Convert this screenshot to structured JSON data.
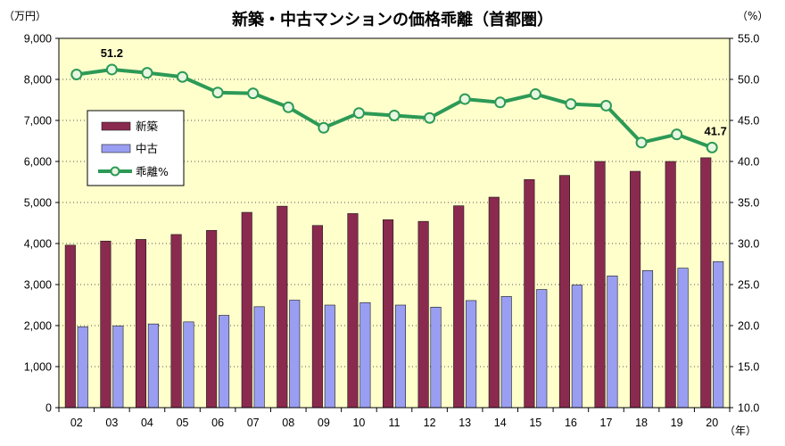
{
  "chart_data": {
    "type": "bar",
    "title": "新築・中古マンションの価格乖離（首都圏）",
    "ylabel_left": "（万円）",
    "ylabel_right": "（%）",
    "xlabel": "（年）",
    "categories": [
      "02",
      "03",
      "04",
      "05",
      "06",
      "07",
      "08",
      "09",
      "10",
      "11",
      "12",
      "13",
      "14",
      "15",
      "16",
      "17",
      "18",
      "19",
      "20"
    ],
    "ylim_left": [
      0,
      9000
    ],
    "yticks_left": [
      "0",
      "1,000",
      "2,000",
      "3,000",
      "4,000",
      "5,000",
      "6,000",
      "7,000",
      "8,000",
      "9,000"
    ],
    "ylim_right": [
      10,
      55
    ],
    "yticks_right": [
      "10.0",
      "15.0",
      "20.0",
      "25.0",
      "30.0",
      "35.0",
      "40.0",
      "45.0",
      "50.0",
      "55.0"
    ],
    "series": [
      {
        "name": "新築",
        "type": "bar",
        "axis": "left",
        "color": "#8b2a4f",
        "values": [
          3960,
          4060,
          4100,
          4220,
          4320,
          4760,
          4910,
          4440,
          4730,
          4580,
          4540,
          4920,
          5130,
          5560,
          5660,
          6000,
          5760,
          6000,
          6090
        ]
      },
      {
        "name": "中古",
        "type": "bar",
        "axis": "left",
        "color": "#9a9ef2",
        "values": [
          1970,
          1990,
          2040,
          2090,
          2250,
          2460,
          2620,
          2500,
          2560,
          2500,
          2450,
          2610,
          2710,
          2880,
          2990,
          3210,
          3340,
          3400,
          3560
        ]
      },
      {
        "name": "乖離%",
        "type": "line",
        "axis": "right",
        "color": "#2c9a56",
        "values": [
          50.6,
          51.2,
          50.8,
          50.3,
          48.4,
          48.3,
          46.6,
          44.1,
          45.9,
          45.6,
          45.3,
          47.6,
          47.2,
          48.2,
          47.0,
          46.8,
          42.3,
          43.3,
          41.7
        ]
      }
    ],
    "annotations": [
      "51.2",
      "41.7"
    ],
    "legend_position": "upper-left inside plot",
    "plot_background": "#ffffcc",
    "grid": "horizontal dotted"
  }
}
